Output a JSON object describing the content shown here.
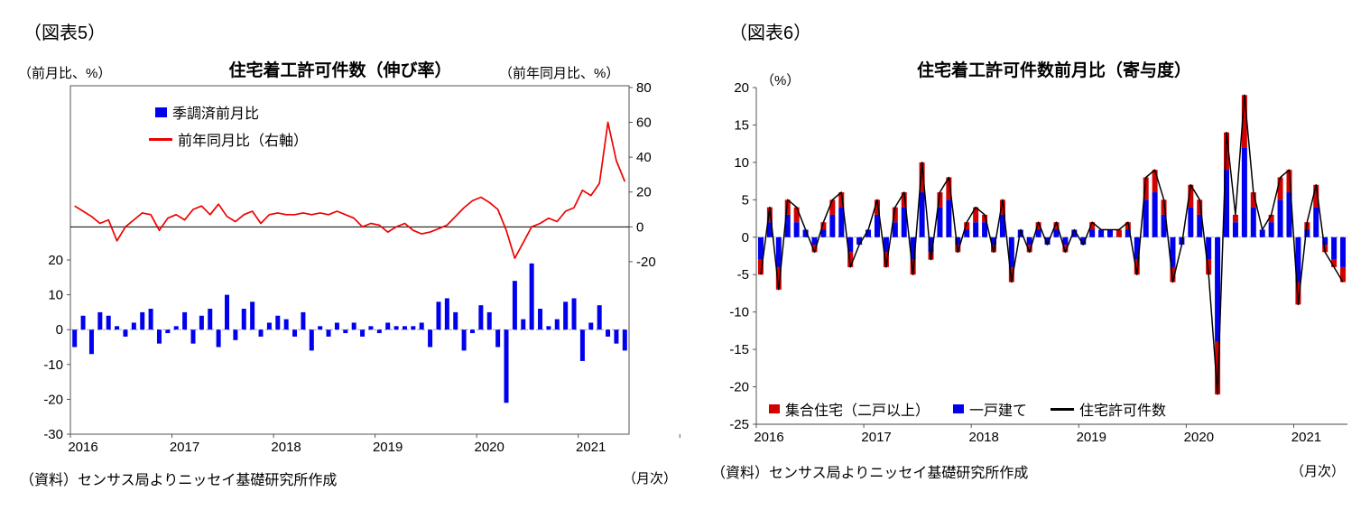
{
  "page": {
    "background": "#ffffff"
  },
  "fig5": {
    "label": "（図表5）",
    "title": "住宅着工許可件数（伸び率）",
    "left_axis_label": "（前月比、%）",
    "right_axis_label": "（前年同月比、%）",
    "legend_bar": "季調済前月比",
    "legend_line": "前年同月比（右軸）",
    "source": "（資料）センサス局よりニッセイ基礎研究所作成",
    "frequency_note": "（月次）"
  },
  "fig6": {
    "label": "（図表6）",
    "title": "住宅着工許可件数前月比（寄与度）",
    "y_axis_label": "（%）",
    "legend_multi": "集合住宅（二戸以上）",
    "legend_single": "一戸建て",
    "legend_total": "住宅許可件数",
    "source": "（資料）センサス局よりニッセイ基礎研究所作成",
    "frequency_note": "（月次）"
  },
  "chart_data": [
    {
      "type": "bar",
      "subtype": "bar+line-dual-axis",
      "title": "住宅着工許可件数（伸び率）",
      "x_years": [
        "2016",
        "2017",
        "2018",
        "2019",
        "2020",
        "2021"
      ],
      "months_start": "2016-01",
      "n_months": 66,
      "bar_axis": {
        "label": "前月比、%",
        "min": -30,
        "max": 70,
        "ticks": [
          20,
          10,
          0,
          -10,
          -20,
          -30
        ]
      },
      "line_axis": {
        "label": "前年同月比、%",
        "min": -119,
        "max": 81,
        "ticks": [
          80,
          60,
          40,
          20,
          0,
          -20
        ]
      },
      "series": [
        {
          "name": "季調済前月比",
          "type": "bar",
          "axis": "left",
          "color": "#0000ee",
          "values": [
            -5,
            4,
            -7,
            5,
            4,
            1,
            -2,
            2,
            5,
            6,
            -4,
            -1,
            1,
            5,
            -4,
            4,
            6,
            -5,
            10,
            -3,
            6,
            8,
            -2,
            2,
            4,
            3,
            -2,
            5,
            -6,
            1,
            -2,
            2,
            -1,
            2,
            -2,
            1,
            -1,
            2,
            1,
            1,
            1,
            2,
            -5,
            8,
            9,
            5,
            -6,
            -1,
            7,
            5,
            -5,
            -21,
            14,
            3,
            19,
            6,
            1,
            3,
            8,
            9,
            -9,
            2,
            7,
            -2,
            -4,
            -6
          ]
        },
        {
          "name": "前年同月比（右軸）",
          "type": "line",
          "axis": "right",
          "color": "#ee0000",
          "values": [
            12,
            9,
            6,
            2,
            4,
            -8,
            0,
            4,
            8,
            7,
            -2,
            5,
            7,
            4,
            10,
            12,
            7,
            13,
            6,
            3,
            7,
            9,
            2,
            7,
            8,
            7,
            7,
            8,
            7,
            8,
            7,
            9,
            7,
            5,
            0,
            2,
            1,
            -3,
            0,
            2,
            -2,
            -4,
            -3,
            -1,
            1,
            6,
            11,
            15,
            17,
            14,
            10,
            -2,
            -18,
            -9,
            0,
            2,
            5,
            3,
            9,
            11,
            21,
            18,
            25,
            60,
            38,
            26
          ]
        }
      ]
    },
    {
      "type": "bar",
      "subtype": "stacked-bar+line",
      "title": "住宅着工許可件数前月比（寄与度）",
      "x_years": [
        "2016",
        "2017",
        "2018",
        "2019",
        "2020",
        "2021"
      ],
      "months_start": "2016-01",
      "n_months": 66,
      "y_axis": {
        "label": "%",
        "min": -25,
        "max": 20,
        "ticks": [
          20,
          15,
          10,
          5,
          0,
          -5,
          -10,
          -15,
          -20,
          -25
        ]
      },
      "series": [
        {
          "name": "集合住宅（二戸以上）",
          "type": "bar",
          "color": "#d40000",
          "values": [
            -2,
            2,
            -3,
            2,
            2,
            0,
            -1,
            1,
            2,
            2,
            -2,
            0,
            0,
            2,
            -2,
            2,
            2,
            -2,
            4,
            -1,
            2,
            3,
            -1,
            1,
            2,
            1,
            -1,
            2,
            -2,
            0,
            -1,
            1,
            0,
            1,
            -1,
            0,
            0,
            1,
            0,
            0,
            1,
            1,
            -2,
            3,
            3,
            2,
            -2,
            0,
            3,
            2,
            -2,
            -7,
            5,
            1,
            7,
            2,
            0,
            1,
            3,
            3,
            -3,
            1,
            3,
            -1,
            -1,
            -2
          ]
        },
        {
          "name": "一戸建て",
          "type": "bar",
          "color": "#0000ee",
          "values": [
            -3,
            2,
            -4,
            3,
            2,
            1,
            -1,
            1,
            3,
            4,
            -2,
            -1,
            1,
            3,
            -2,
            2,
            4,
            -3,
            6,
            -2,
            4,
            5,
            -1,
            1,
            2,
            2,
            -1,
            3,
            -4,
            1,
            -1,
            1,
            -1,
            1,
            -1,
            1,
            -1,
            1,
            1,
            1,
            0,
            1,
            -3,
            5,
            6,
            3,
            -4,
            -1,
            4,
            3,
            -3,
            -14,
            9,
            2,
            12,
            4,
            1,
            2,
            5,
            6,
            -6,
            1,
            4,
            -1,
            -3,
            -4
          ]
        },
        {
          "name": "住宅許可件数",
          "type": "line",
          "color": "#000000",
          "values": [
            -5,
            4,
            -7,
            5,
            4,
            1,
            -2,
            2,
            5,
            6,
            -4,
            -1,
            1,
            5,
            -4,
            4,
            6,
            -5,
            10,
            -3,
            6,
            8,
            -2,
            2,
            4,
            3,
            -2,
            5,
            -6,
            1,
            -2,
            2,
            -1,
            2,
            -2,
            1,
            -1,
            2,
            1,
            1,
            1,
            2,
            -5,
            8,
            9,
            5,
            -6,
            -1,
            7,
            5,
            -5,
            -21,
            14,
            3,
            19,
            6,
            1,
            3,
            8,
            9,
            -9,
            2,
            7,
            -2,
            -4,
            -6
          ]
        }
      ]
    }
  ]
}
